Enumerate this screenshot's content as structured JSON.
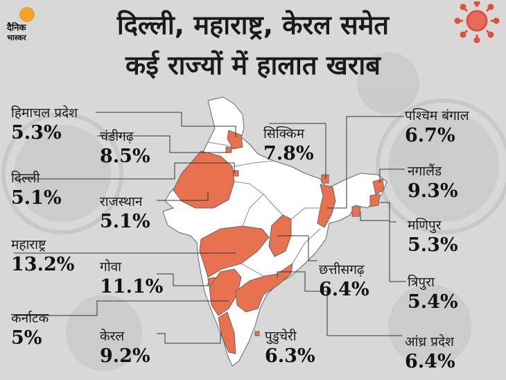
{
  "title": {
    "line1": "दिल्ली, महाराष्ट्र, केरल समेत",
    "line2": "कई राज्यों में हालात खराब"
  },
  "logo": {
    "line1": "दैनिक",
    "line2": "भास्कर"
  },
  "colors": {
    "background": "#d8d8d8",
    "highlight": "#e8714f",
    "state_fill": "#ffffff",
    "border": "#555555",
    "virus": "#e05040"
  },
  "states": [
    {
      "id": "himachal",
      "name": "हिमाचल प्रदेश",
      "value": "5.3%"
    },
    {
      "id": "chandigarh",
      "name": "चंडीगढ़",
      "value": "8.5%"
    },
    {
      "id": "delhi",
      "name": "दिल्ली",
      "value": "5.1%"
    },
    {
      "id": "rajasthan",
      "name": "राजस्थान",
      "value": "5.1%"
    },
    {
      "id": "maharashtra",
      "name": "महाराष्ट्र",
      "value": "13.2%"
    },
    {
      "id": "goa",
      "name": "गोवा",
      "value": "11.1%"
    },
    {
      "id": "karnataka",
      "name": "कर्नाटक",
      "value": "5%"
    },
    {
      "id": "kerala",
      "name": "केरल",
      "value": "9.2%"
    },
    {
      "id": "puducherry",
      "name": "पुडुचेरी",
      "value": "6.3%"
    },
    {
      "id": "chhattisgarh",
      "name": "छत्तीसगढ़",
      "value": "6.4%"
    },
    {
      "id": "andhra",
      "name": "आंध्र प्रदेश",
      "value": "6.4%"
    },
    {
      "id": "sikkim",
      "name": "सिक्किम",
      "value": "7.8%"
    },
    {
      "id": "westbengal",
      "name": "पश्चिम बंगाल",
      "value": "6.7%"
    },
    {
      "id": "nagaland",
      "name": "नगालैंड",
      "value": "9.3%"
    },
    {
      "id": "manipur",
      "name": "मणिपुर",
      "value": "5.3%"
    },
    {
      "id": "tripura",
      "name": "त्रिपुरा",
      "value": "5.4%"
    }
  ]
}
